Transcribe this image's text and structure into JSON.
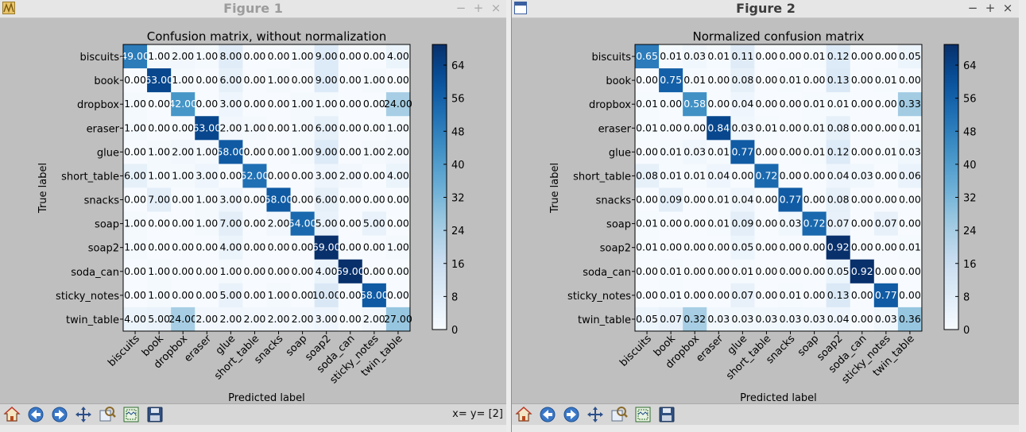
{
  "windows": [
    {
      "title": "Figure 1",
      "controls": {
        "minimize": "−",
        "maximize": "+",
        "close": "×"
      },
      "coordinate_readout": "x= y= [2]"
    },
    {
      "title": "Figure 2",
      "controls": {
        "minimize": "−",
        "maximize": "+",
        "close": "×"
      },
      "coordinate_readout": ""
    }
  ],
  "toolbar_icons": [
    "home-icon",
    "back-arrow-icon",
    "forward-arrow-icon",
    "pan-move-icon",
    "zoom-icon",
    "subplots-configure-icon",
    "save-icon"
  ],
  "colors": {
    "cmap_low": "#f7fbff",
    "cmap_high": "#08306b",
    "canvas": "#bfbfbf"
  },
  "chart_data": [
    {
      "type": "heatmap",
      "title": "Confusion matrix, without normalization",
      "xlabel": "Predicted label",
      "ylabel": "True label",
      "labels": [
        "biscuits",
        "book",
        "dropbox",
        "eraser",
        "glue",
        "short_table",
        "snacks",
        "soap",
        "soap2",
        "soda_can",
        "sticky_notes",
        "twin_table"
      ],
      "matrix": [
        [
          49,
          1,
          2,
          1,
          8,
          0,
          0,
          1,
          9,
          0,
          0,
          4
        ],
        [
          0,
          63,
          1,
          0,
          6,
          0,
          1,
          0,
          9,
          0,
          1,
          0
        ],
        [
          1,
          0,
          42,
          0,
          3,
          0,
          0,
          1,
          1,
          0,
          0,
          24
        ],
        [
          1,
          0,
          0,
          63,
          2,
          1,
          0,
          1,
          6,
          0,
          0,
          1
        ],
        [
          0,
          1,
          2,
          1,
          58,
          0,
          0,
          1,
          9,
          0,
          1,
          2
        ],
        [
          6,
          1,
          1,
          3,
          0,
          52,
          0,
          0,
          3,
          2,
          0,
          4
        ],
        [
          0,
          7,
          0,
          1,
          3,
          0,
          58,
          0,
          6,
          0,
          0,
          0
        ],
        [
          1,
          0,
          0,
          1,
          7,
          0,
          2,
          54,
          5,
          0,
          5,
          0
        ],
        [
          1,
          0,
          0,
          0,
          4,
          0,
          0,
          0,
          69,
          0,
          0,
          1
        ],
        [
          0,
          1,
          0,
          0,
          1,
          0,
          0,
          0,
          4,
          69,
          0,
          0
        ],
        [
          0,
          1,
          0,
          0,
          5,
          0,
          1,
          0,
          10,
          0,
          58,
          0
        ],
        [
          4,
          5,
          24,
          2,
          2,
          2,
          2,
          2,
          3,
          0,
          2,
          27
        ]
      ],
      "cell_format": "2 decimals",
      "colorbar": {
        "ticks": [
          "0",
          "8",
          "16",
          "24",
          "32",
          "40",
          "48",
          "56",
          "64"
        ],
        "range": [
          0,
          69
        ]
      }
    },
    {
      "type": "heatmap",
      "title": "Normalized confusion matrix",
      "xlabel": "Predicted label",
      "ylabel": "True label",
      "labels": [
        "biscuits",
        "book",
        "dropbox",
        "eraser",
        "glue",
        "short_table",
        "snacks",
        "soap",
        "soap2",
        "soda_can",
        "sticky_notes",
        "twin_table"
      ],
      "matrix": [
        [
          0.65,
          0.01,
          0.03,
          0.01,
          0.11,
          0.0,
          0.0,
          0.01,
          0.12,
          0.0,
          0.0,
          0.05
        ],
        [
          0.0,
          0.75,
          0.01,
          0.0,
          0.08,
          0.0,
          0.01,
          0.0,
          0.13,
          0.0,
          0.01,
          0.0
        ],
        [
          0.01,
          0.0,
          0.58,
          0.0,
          0.04,
          0.0,
          0.0,
          0.01,
          0.01,
          0.0,
          0.0,
          0.33
        ],
        [
          0.01,
          0.0,
          0.0,
          0.84,
          0.03,
          0.01,
          0.0,
          0.01,
          0.08,
          0.0,
          0.0,
          0.01
        ],
        [
          0.0,
          0.01,
          0.03,
          0.01,
          0.77,
          0.0,
          0.0,
          0.01,
          0.12,
          0.0,
          0.01,
          0.03
        ],
        [
          0.08,
          0.01,
          0.01,
          0.04,
          0.0,
          0.72,
          0.0,
          0.0,
          0.04,
          0.03,
          0.0,
          0.06
        ],
        [
          0.0,
          0.09,
          0.0,
          0.01,
          0.04,
          0.0,
          0.77,
          0.0,
          0.08,
          0.0,
          0.0,
          0.0
        ],
        [
          0.01,
          0.0,
          0.0,
          0.01,
          0.09,
          0.0,
          0.03,
          0.72,
          0.07,
          0.0,
          0.07,
          0.0
        ],
        [
          0.01,
          0.0,
          0.0,
          0.0,
          0.05,
          0.0,
          0.0,
          0.0,
          0.92,
          0.0,
          0.0,
          0.01
        ],
        [
          0.0,
          0.01,
          0.0,
          0.0,
          0.01,
          0.0,
          0.0,
          0.0,
          0.05,
          0.92,
          0.0,
          0.0
        ],
        [
          0.0,
          0.01,
          0.0,
          0.0,
          0.07,
          0.0,
          0.01,
          0.0,
          0.13,
          0.0,
          0.77,
          0.0
        ],
        [
          0.05,
          0.07,
          0.32,
          0.03,
          0.03,
          0.03,
          0.03,
          0.03,
          0.04,
          0.0,
          0.03,
          0.36
        ]
      ],
      "cell_format": "2 decimals",
      "colorbar": {
        "ticks": [
          "0",
          "8",
          "16",
          "24",
          "32",
          "40",
          "48",
          "56",
          "64"
        ],
        "range": [
          0,
          69
        ]
      }
    }
  ]
}
